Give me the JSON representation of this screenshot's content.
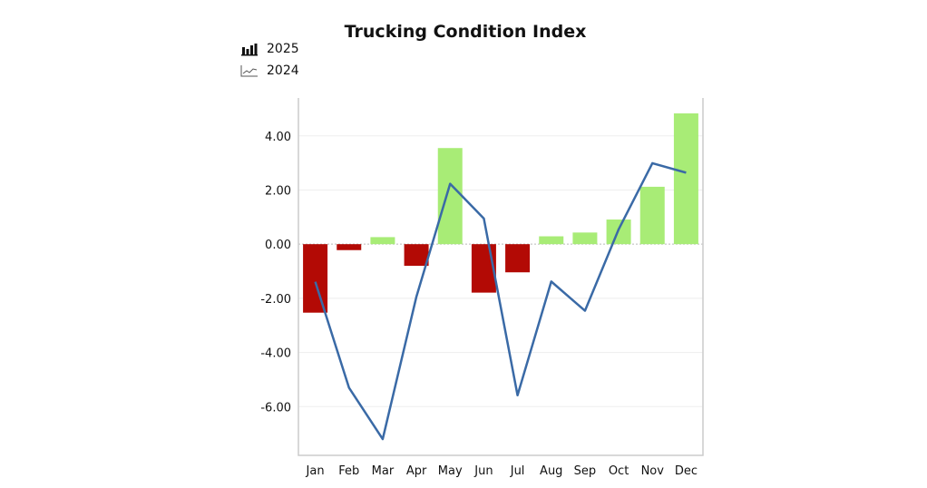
{
  "chart_data": {
    "type": "bar+line",
    "title": "Trucking Condition Index",
    "categories": [
      "Jan",
      "Feb",
      "Mar",
      "Apr",
      "May",
      "Jun",
      "Jul",
      "Aug",
      "Sep",
      "Oct",
      "Nov",
      "Dec"
    ],
    "series": [
      {
        "name": "2025",
        "type": "bar",
        "values": [
          -2.53,
          -0.22,
          0.26,
          -0.8,
          3.55,
          -1.79,
          -1.04,
          0.29,
          0.43,
          0.91,
          2.12,
          4.83
        ]
      },
      {
        "name": "2024",
        "type": "line",
        "values": [
          -1.39,
          -5.3,
          -7.2,
          -1.94,
          2.23,
          0.95,
          -5.58,
          -1.38,
          -2.46,
          0.55,
          2.99,
          2.64
        ]
      }
    ],
    "yticks": [
      "4.00",
      "2.00",
      "0.00",
      "-2.00",
      "-4.00",
      "-6.00"
    ],
    "ytick_values": [
      4,
      2,
      0,
      -2,
      -4,
      -6
    ],
    "ylim": [
      -7.8,
      5.4
    ],
    "grid": true,
    "legend_placement": "top-left",
    "colors": {
      "positive": "#a8ec76",
      "negative": "#b30a05",
      "line": "#3a6aa6"
    }
  }
}
